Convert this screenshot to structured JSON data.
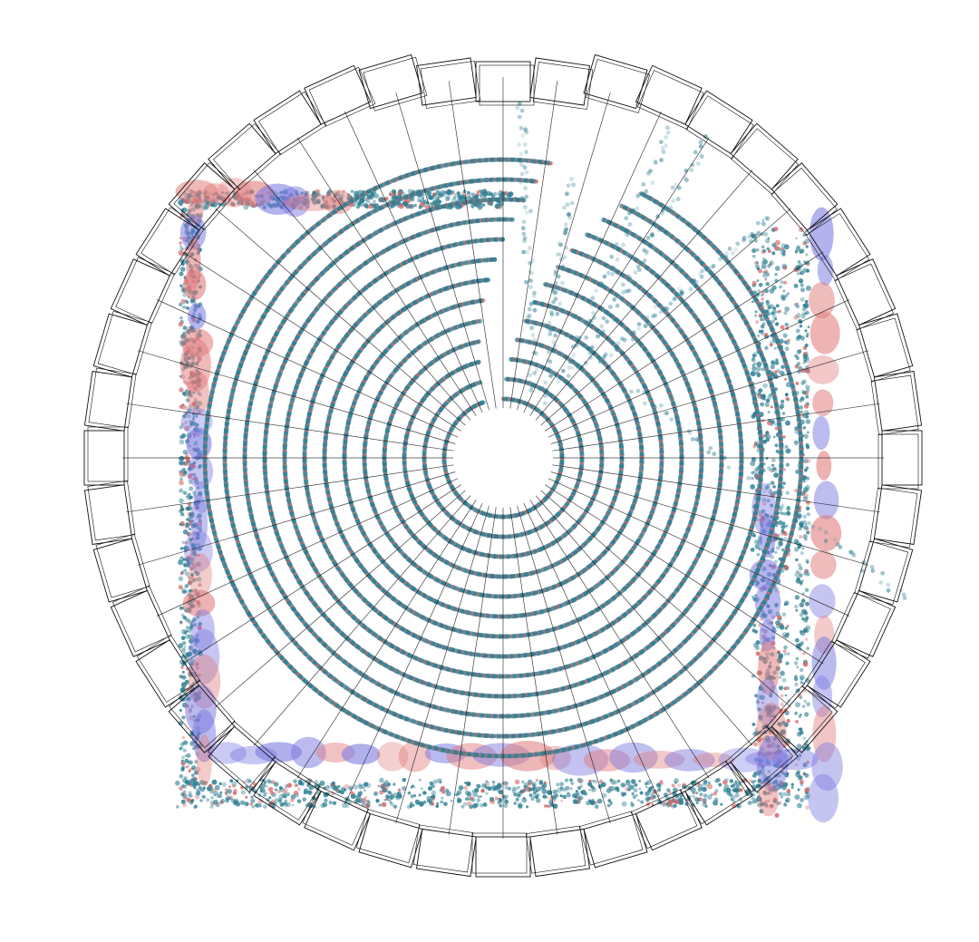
{
  "scene": {
    "kind": "3d-reconstruction-render",
    "view": "top-down",
    "background": "#ffffff",
    "colors": {
      "trajectory_points": "#2f7f92",
      "sparse_points": "#d46a6a",
      "ellipsoid_red": "#e07a7a",
      "ellipsoid_blue": "#7a78e0",
      "camera_frustum": "#111111"
    },
    "camera_ring": {
      "count": 44,
      "style": "wireframe-boxes"
    },
    "spiral_rings": {
      "count": 13,
      "style": "dense-point-rings"
    },
    "room_outline": {
      "shape": "square",
      "style": "point-walls-with-ellipsoids"
    },
    "streaks": {
      "count": 6,
      "direction": "upper-right"
    },
    "text_labels": []
  }
}
